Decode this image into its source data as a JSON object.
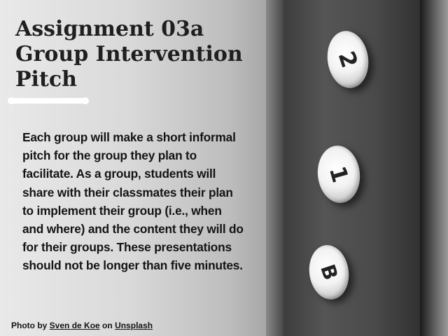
{
  "slide": {
    "title_lines": [
      "Assignment 03a",
      "Group Intervention",
      "Pitch"
    ],
    "body": "Each group will make a short informal pitch for the group they plan to facilitate. As a group, students will share with their classmates their plan to implement their group (i.e., when and where) and the content they will do for their groups. These presentations should not be longer than five minutes.",
    "credit": {
      "prefix": "Photo by",
      "author": "Sven de Koe",
      "middle": "on",
      "site": "Unsplash"
    }
  },
  "photo": {
    "elevator_buttons": [
      "2",
      "1",
      "B"
    ]
  }
}
